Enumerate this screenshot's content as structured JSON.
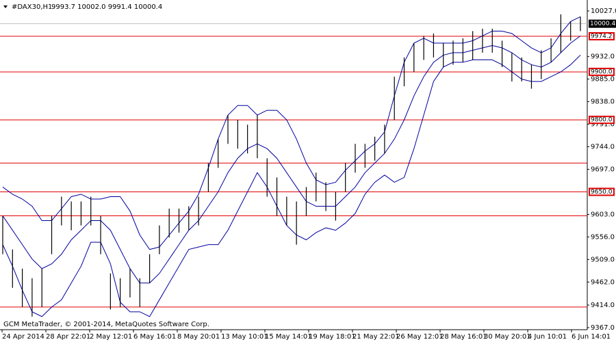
{
  "chart_data": {
    "type": "hl-bars",
    "title": "#DAX30,H1",
    "subtitle": "9993.7 10002.0 9991.4 10000.4",
    "footer": "GCM MetaTrader, © 2001-2014, MetaQuotes Software Corp.",
    "x_labels": [
      "24 Apr 2014",
      "28 Apr 22:01",
      "2 May 12:01",
      "6 May 16:01",
      "8 May 20:01",
      "13 May 10:01",
      "15 May 14:01",
      "19 May 18:01",
      "21 May 22:01",
      "26 May 12:01",
      "28 May 16:01",
      "30 May 20:01",
      "4 Jun 10:01",
      "6 Jun 14:01"
    ],
    "ylim": [
      9367,
      10027
    ],
    "yticks": [
      {
        "value": 10027,
        "label": "10027.0"
      },
      {
        "value": 9932,
        "label": "9932.0"
      },
      {
        "value": 9885,
        "label": "9885.0"
      },
      {
        "value": 9838,
        "label": "9838.0"
      },
      {
        "value": 9791,
        "label": "9791.0"
      },
      {
        "value": 9744,
        "label": "9744.0"
      },
      {
        "value": 9697,
        "label": "9697.0"
      },
      {
        "value": 9603,
        "label": "9603.0"
      },
      {
        "value": 9556,
        "label": "9556.0"
      },
      {
        "value": 9509,
        "label": "9509.0"
      },
      {
        "value": 9462,
        "label": "9462.0"
      },
      {
        "value": 9414,
        "label": "9414.0"
      },
      {
        "value": 9367,
        "label": "9367.0"
      }
    ],
    "bar_color": "#000000",
    "high": [
      9600,
      9530,
      9490,
      9470,
      9490,
      9600,
      9640,
      9630,
      9630,
      9640,
      9600,
      9480,
      9470,
      9490,
      9470,
      9520,
      9580,
      9615,
      9615,
      9620,
      9640,
      9710,
      9760,
      9810,
      9800,
      9790,
      9810,
      9720,
      9680,
      9640,
      9630,
      9660,
      9690,
      9670,
      9650,
      9710,
      9750,
      9750,
      9765,
      9790,
      9890,
      9930,
      9960,
      9975,
      9980,
      9960,
      9965,
      9970,
      9985,
      9990,
      9990,
      9965,
      9940,
      9930,
      9915,
      9945,
      9970,
      10020,
      10005,
      10015
    ],
    "low": [
      9520,
      9450,
      9410,
      9390,
      9410,
      9520,
      9580,
      9570,
      9580,
      9580,
      9520,
      9405,
      9410,
      9430,
      9410,
      9460,
      9520,
      9555,
      9565,
      9570,
      9580,
      9650,
      9700,
      9750,
      9740,
      9730,
      9720,
      9640,
      9600,
      9580,
      9540,
      9600,
      9630,
      9610,
      9590,
      9650,
      9690,
      9700,
      9715,
      9730,
      9800,
      9870,
      9900,
      9925,
      9930,
      9910,
      9915,
      9920,
      9925,
      9940,
      9940,
      9910,
      9880,
      9880,
      9865,
      9885,
      9920,
      9940,
      9965,
      9985
    ],
    "bands": {
      "color": "#0000a0",
      "upper": [
        9660,
        9645,
        9635,
        9620,
        9590,
        9590,
        9615,
        9640,
        9645,
        9635,
        9635,
        9640,
        9640,
        9610,
        9560,
        9530,
        9535,
        9560,
        9585,
        9610,
        9645,
        9700,
        9760,
        9810,
        9830,
        9830,
        9810,
        9820,
        9820,
        9800,
        9760,
        9710,
        9675,
        9665,
        9670,
        9695,
        9715,
        9735,
        9750,
        9775,
        9850,
        9920,
        9960,
        9970,
        9960,
        9960,
        9960,
        9960,
        9965,
        9975,
        9985,
        9985,
        9980,
        9965,
        9950,
        9940,
        9950,
        9980,
        10005,
        10015
      ],
      "middle": [
        9600,
        9570,
        9540,
        9510,
        9490,
        9500,
        9520,
        9550,
        9570,
        9590,
        9590,
        9570,
        9530,
        9490,
        9460,
        9460,
        9480,
        9510,
        9540,
        9570,
        9590,
        9620,
        9650,
        9690,
        9720,
        9740,
        9750,
        9740,
        9720,
        9690,
        9660,
        9630,
        9620,
        9620,
        9620,
        9640,
        9660,
        9690,
        9710,
        9730,
        9760,
        9800,
        9850,
        9890,
        9920,
        9935,
        9940,
        9940,
        9945,
        9950,
        9955,
        9950,
        9940,
        9925,
        9915,
        9910,
        9920,
        9940,
        9960,
        9975
      ],
      "lower": [
        9540,
        9495,
        9445,
        9400,
        9390,
        9410,
        9425,
        9460,
        9495,
        9545,
        9545,
        9500,
        9420,
        9400,
        9400,
        9390,
        9425,
        9460,
        9495,
        9530,
        9535,
        9540,
        9540,
        9570,
        9610,
        9650,
        9690,
        9660,
        9620,
        9580,
        9560,
        9550,
        9565,
        9575,
        9570,
        9585,
        9605,
        9645,
        9670,
        9685,
        9670,
        9680,
        9740,
        9810,
        9880,
        9910,
        9920,
        9920,
        9925,
        9925,
        9925,
        9915,
        9900,
        9885,
        9880,
        9880,
        9890,
        9900,
        9915,
        9935
      ]
    },
    "level_color": "#e00000",
    "levels": [
      {
        "value": 9974.2,
        "label": "9974.2"
      },
      {
        "value": 9900,
        "label": "9900.0"
      },
      {
        "value": 9800,
        "label": "9800.0"
      },
      9710,
      {
        "value": 9650,
        "label": "9650.0"
      },
      9600,
      9410
    ],
    "last": {
      "value": 10000.4,
      "label": "10000.4"
    }
  }
}
